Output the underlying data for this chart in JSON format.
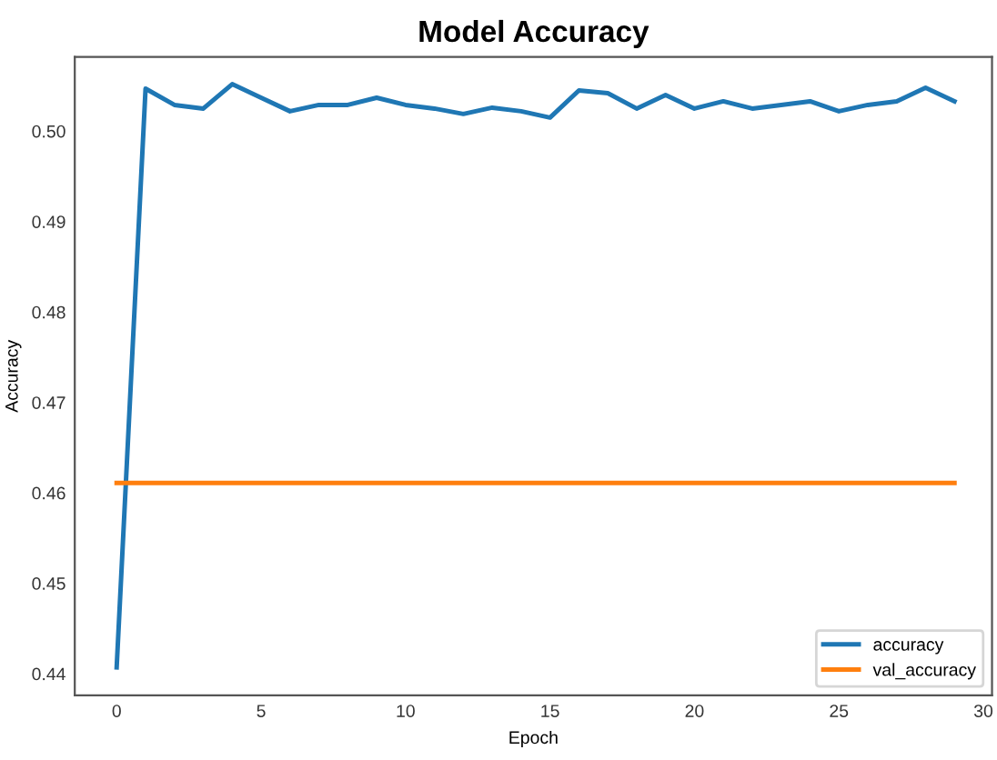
{
  "chart_data": {
    "type": "line",
    "title": "Model Accuracy",
    "xlabel": "Epoch",
    "ylabel": "Accuracy",
    "x": [
      0,
      1,
      2,
      3,
      4,
      5,
      6,
      7,
      8,
      9,
      10,
      11,
      12,
      13,
      14,
      15,
      16,
      17,
      18,
      19,
      20,
      21,
      22,
      23,
      24,
      25,
      26,
      27,
      28,
      29
    ],
    "series": [
      {
        "name": "accuracy",
        "color": "#1f77b4",
        "values": [
          0.4407,
          0.5047,
          0.5029,
          0.5025,
          0.5052,
          0.5037,
          0.5022,
          0.5029,
          0.5029,
          0.5037,
          0.5029,
          0.5025,
          0.5019,
          0.5026,
          0.5022,
          0.5015,
          0.5045,
          0.5042,
          0.5025,
          0.504,
          0.5025,
          0.5033,
          0.5025,
          0.5029,
          0.5033,
          0.5022,
          0.5029,
          0.5033,
          0.5048,
          0.5033
        ]
      },
      {
        "name": "val_accuracy",
        "color": "#ff7f0e",
        "values": [
          0.4611,
          0.4611,
          0.4611,
          0.4611,
          0.4611,
          0.4611,
          0.4611,
          0.4611,
          0.4611,
          0.4611,
          0.4611,
          0.4611,
          0.4611,
          0.4611,
          0.4611,
          0.4611,
          0.4611,
          0.4611,
          0.4611,
          0.4611,
          0.4611,
          0.4611,
          0.4611,
          0.4611,
          0.4611,
          0.4611,
          0.4611,
          0.4611,
          0.4611,
          0.4611
        ]
      }
    ],
    "xlim": [
      -1.45,
      30.3
    ],
    "ylim": [
      0.4376,
      0.5082
    ],
    "xticks": [
      0,
      5,
      10,
      15,
      20,
      25,
      30
    ],
    "yticks": [
      {
        "value": 0.44,
        "label": "0.44"
      },
      {
        "value": 0.45,
        "label": "0.45"
      },
      {
        "value": 0.46,
        "label": "0.46"
      },
      {
        "value": 0.47,
        "label": "0.47"
      },
      {
        "value": 0.48,
        "label": "0.48"
      },
      {
        "value": 0.49,
        "label": "0.49"
      },
      {
        "value": 0.5,
        "label": "0.50"
      }
    ],
    "grid": false,
    "legend": "bottom right",
    "marker": "none",
    "line_style": "solid"
  }
}
